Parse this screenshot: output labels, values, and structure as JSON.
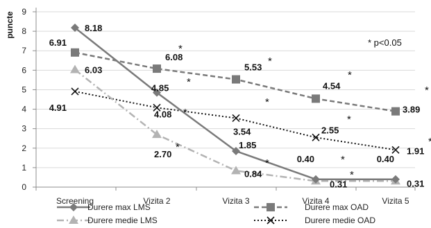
{
  "chart_data": {
    "type": "line",
    "ylabel": "puncte",
    "ylim": [
      0,
      9
    ],
    "yticks": [
      "0",
      "1",
      "2",
      "3",
      "4",
      "5",
      "6",
      "7",
      "8",
      "9"
    ],
    "categories": [
      "Screening",
      "Vizita 2",
      "Vizita 3",
      "Vizita 4",
      "Vizita 5"
    ],
    "annotation": "* p<0.05",
    "legend_position": "bottom",
    "series": [
      {
        "name": "Durere max LMS",
        "values": [
          8.18,
          4.85,
          1.85,
          0.4,
          0.4
        ],
        "labels": [
          "8.18",
          "4.85",
          "1.85",
          "0.40",
          "0.40"
        ],
        "color": "#7a7a7a",
        "marker": "diamond",
        "dash": "solid"
      },
      {
        "name": "Durere max OAD",
        "values": [
          6.91,
          6.08,
          5.53,
          4.54,
          3.89
        ],
        "labels": [
          "6.91",
          "6.08",
          "5.53",
          "4.54",
          "3.89"
        ],
        "color": "#7a7a7a",
        "marker": "square",
        "dash": "dashed"
      },
      {
        "name": "Durere medie LMS",
        "values": [
          6.03,
          2.7,
          0.84,
          0.31,
          0.31
        ],
        "labels": [
          "6.03",
          "2.70",
          "0.84",
          "0.31",
          "0.31"
        ],
        "color": "#b3b3b3",
        "marker": "triangle",
        "dash": "dashdot"
      },
      {
        "name": "Durere medie OAD",
        "values": [
          4.91,
          4.08,
          3.54,
          2.55,
          1.91
        ],
        "labels": [
          "4.91",
          "4.08",
          "3.54",
          "2.55",
          "1.91"
        ],
        "color": "#111111",
        "marker": "x",
        "dash": "dotted"
      }
    ],
    "significance_marker": "*"
  }
}
